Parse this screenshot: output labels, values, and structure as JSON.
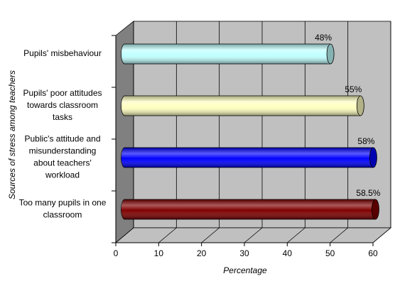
{
  "chart_data": {
    "type": "bar",
    "orientation": "horizontal",
    "x_label": "Percentage",
    "y_label": "Sources of stress among teachers",
    "categories": [
      "Pupils' misbehaviour",
      "Pupils' poor attitudes towards classroom tasks",
      "Public's attitude and misunderstanding about teachers' workload",
      "Too many pupils in one classroom"
    ],
    "values": [
      48,
      55,
      58,
      58.5
    ],
    "value_labels": [
      "48%",
      "55%",
      "58%",
      "58.5%"
    ],
    "colors": [
      "#c0ffff",
      "#ffffc0",
      "#0000ff",
      "#800000"
    ],
    "xlim": [
      0,
      60
    ],
    "xticks": [
      0,
      10,
      20,
      30,
      40,
      50,
      60
    ],
    "grid": true
  }
}
